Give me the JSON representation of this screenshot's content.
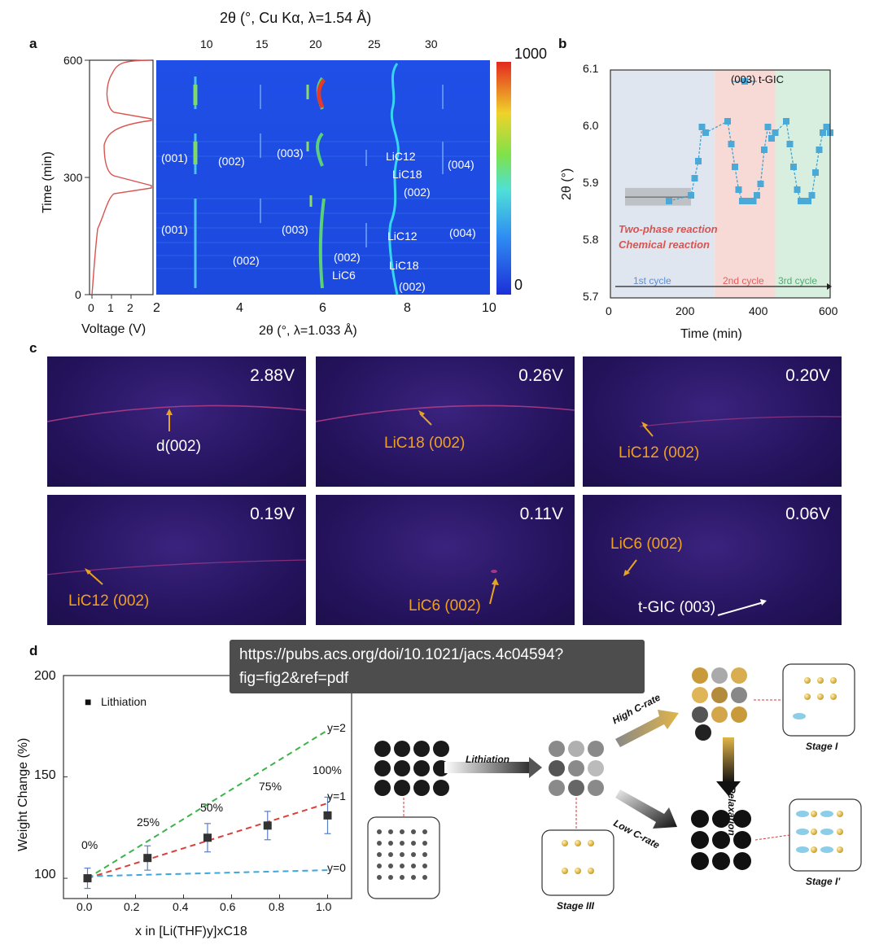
{
  "panel_labels": {
    "a": "a",
    "b": "b",
    "c": "c",
    "d": "d"
  },
  "panel_a": {
    "top_axis_title": "2θ (°, Cu Kα, λ=1.54 Å)",
    "top_ticks": [
      "10",
      "15",
      "20",
      "25",
      "30"
    ],
    "bottom_axis_title": "2θ (°, λ=1.033 Å)",
    "bottom_ticks": [
      "2",
      "4",
      "6",
      "8",
      "10"
    ],
    "voltage": {
      "ylabel": "Time (min)",
      "xlabel": "Voltage (V)",
      "yticks": [
        "600",
        "300",
        "0"
      ],
      "xticks": [
        "0",
        "1",
        "2"
      ]
    },
    "colorbar": {
      "max": "1000",
      "min": "0"
    },
    "annotations": {
      "a001_top": "(001)",
      "a002_top": "(002)",
      "a003_top": "(003)",
      "lic12_top": "LiC12",
      "lic18_top": "LiC18",
      "a002_top_r": "(002)",
      "a004_top": "(004)",
      "a001_bot": "(001)",
      "a003_bot": "(003)",
      "lic12_bot": "LiC12",
      "a004_bot": "(004)",
      "a002_bot": "(002)",
      "a002_mid": "(002)",
      "lic6_bot": "LiC6",
      "lic18_bot": "LiC18",
      "a002_bot_r": "(002)"
    }
  },
  "panel_b": {
    "legend": "(003) t-GIC",
    "ylabel": "2θ (°)",
    "xlabel": "Time (min)",
    "yticks": [
      "6.1",
      "6.0",
      "5.9",
      "5.8",
      "5.7"
    ],
    "xticks": [
      "0",
      "200",
      "400",
      "600"
    ],
    "text_red1": "Two-phase reaction",
    "text_red2": "Chemical reaction",
    "cycle1": "1st cycle",
    "cycle2": "2nd cycle",
    "cycle3": "3rd cycle"
  },
  "panel_c": {
    "voltages": [
      "2.88V",
      "0.26V",
      "0.20V",
      "0.19V",
      "0.11V",
      "0.06V"
    ],
    "labels": {
      "d002": "d(002)",
      "lic18": "LiC18 (002)",
      "lic12_a": "LiC12 (002)",
      "lic12_b": "LiC12 (002)",
      "lic6_a": "LiC6 (002)",
      "lic6_b": "LiC6 (002)",
      "tgic": "t-GIC (003)"
    }
  },
  "tooltip": {
    "line1": "https://pubs.acs.org/doi/10.1021/jacs.4c04594?",
    "line2": "fig=fig2&ref=pdf"
  },
  "panel_d": {
    "ylabel": "Weight Change (%)",
    "xlabel": "x in [Li(THF)y]xC18",
    "legend": "Lithiation",
    "yticks": [
      "200",
      "150",
      "100"
    ],
    "xticks": [
      "0.0",
      "0.2",
      "0.4",
      "0.6",
      "0.8",
      "1.0"
    ],
    "pct": [
      "0%",
      "25%",
      "50%",
      "75%",
      "100%"
    ],
    "lines": [
      "y=2",
      "y=1",
      "y=0"
    ]
  },
  "schematic": {
    "lithiation": "Lithiation",
    "high": "High C-rate",
    "low": "Low C-rate",
    "relaxation": "Relaxation",
    "stage3": "Stage III",
    "stage1": "Stage I",
    "stage1p": "Stage I'"
  },
  "chart_data": [
    {
      "type": "line",
      "title": "",
      "xlabel": "Time (min)",
      "ylabel": "2θ (°)",
      "xlim": [
        0,
        600
      ],
      "ylim": [
        5.7,
        6.1
      ],
      "series": [
        {
          "name": "(003) t-GIC",
          "x": [
            160,
            220,
            230,
            240,
            250,
            260,
            320,
            330,
            340,
            350,
            360,
            370,
            380,
            390,
            400,
            410,
            420,
            430,
            440,
            450,
            480,
            490,
            500,
            510,
            520,
            530,
            540,
            550,
            560,
            570,
            580,
            590,
            600
          ],
          "y": [
            5.87,
            5.88,
            5.91,
            5.94,
            6.0,
            5.99,
            6.01,
            5.97,
            5.93,
            5.89,
            5.87,
            5.87,
            5.87,
            5.87,
            5.88,
            5.9,
            5.96,
            6.0,
            5.98,
            5.99,
            6.01,
            5.97,
            5.93,
            5.89,
            5.87,
            5.87,
            5.87,
            5.88,
            5.92,
            5.96,
            5.99,
            6.0,
            5.99
          ]
        }
      ]
    },
    {
      "type": "scatter",
      "title": "",
      "xlabel": "x in [Li(THF)y]xC18",
      "ylabel": "Weight Change (%)",
      "xlim": [
        -0.1,
        1.1
      ],
      "ylim": [
        90,
        200
      ],
      "series": [
        {
          "name": "Lithiation",
          "x": [
            0.0,
            0.25,
            0.5,
            0.75,
            1.0
          ],
          "y": [
            100,
            110,
            120,
            126,
            131
          ],
          "err": [
            5,
            6,
            7,
            7,
            9
          ]
        },
        {
          "name": "y=2",
          "x": [
            0.0,
            1.0
          ],
          "y": [
            100,
            173
          ]
        },
        {
          "name": "y=1",
          "x": [
            0.0,
            1.0
          ],
          "y": [
            100,
            137
          ]
        },
        {
          "name": "y=0",
          "x": [
            0.0,
            1.0
          ],
          "y": [
            101,
            104
          ]
        }
      ]
    }
  ]
}
